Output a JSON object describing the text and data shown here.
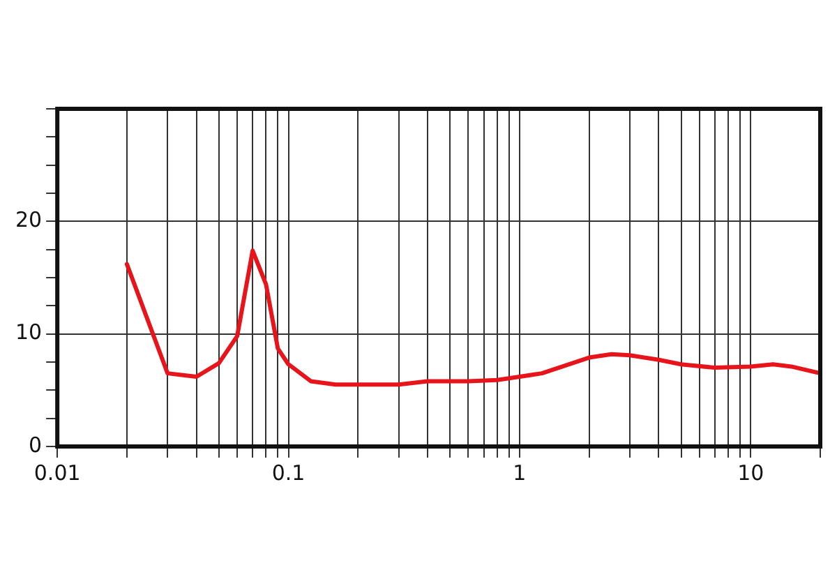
{
  "chart_data": {
    "type": "line",
    "x": [
      0.02,
      0.03,
      0.04,
      0.05,
      0.06,
      0.07,
      0.08,
      0.09,
      0.1,
      0.125,
      0.16,
      0.2,
      0.3,
      0.4,
      0.6,
      0.8,
      1,
      1.25,
      2,
      2.5,
      3,
      4,
      5,
      7,
      10,
      12.5,
      15,
      20
    ],
    "series": [
      {
        "color": "#e8141c",
        "values": [
          16.2,
          6.5,
          6.2,
          7.4,
          9.8,
          17.4,
          14.4,
          8.7,
          7.3,
          5.8,
          5.5,
          5.5,
          5.5,
          5.8,
          5.8,
          5.9,
          6.2,
          6.5,
          7.9,
          8.2,
          8.1,
          7.7,
          7.3,
          7.0,
          7.1,
          7.3,
          7.1,
          6.5
        ]
      }
    ],
    "log": "x",
    "xlim": [
      0.01,
      20
    ],
    "xticks": [
      0.01,
      {
        "value": 0.02,
        "label": null
      },
      {
        "value": 0.03,
        "label": null
      },
      {
        "value": 0.04,
        "label": null
      },
      {
        "value": 0.05,
        "label": null
      },
      {
        "value": 0.06,
        "label": null
      },
      {
        "value": 0.07,
        "label": null
      },
      {
        "value": 0.08,
        "label": null
      },
      {
        "value": 0.09,
        "label": null
      },
      0.1,
      {
        "value": 0.2,
        "label": null
      },
      {
        "value": 0.3,
        "label": null
      },
      {
        "value": 0.4,
        "label": null
      },
      {
        "value": 0.5,
        "label": null
      },
      {
        "value": 0.6,
        "label": null
      },
      {
        "value": 0.7,
        "label": null
      },
      {
        "value": 0.8,
        "label": null
      },
      {
        "value": 0.9,
        "label": null
      },
      1,
      {
        "value": 2,
        "label": null
      },
      {
        "value": 3,
        "label": null
      },
      {
        "value": 4,
        "label": null
      },
      {
        "value": 5,
        "label": null
      },
      {
        "value": 6,
        "label": null
      },
      {
        "value": 7,
        "label": null
      },
      {
        "value": 8,
        "label": null
      },
      {
        "value": 9,
        "label": null
      },
      10,
      {
        "value": 20,
        "label": null
      }
    ],
    "ylim": [
      0,
      30
    ],
    "yticks": [
      0,
      {
        "value": 2.5,
        "label": null
      },
      {
        "value": 5,
        "label": null
      },
      {
        "value": 7.5,
        "label": null
      },
      10,
      {
        "value": 12.5,
        "label": null
      },
      {
        "value": 15,
        "label": null
      },
      {
        "value": 17.5,
        "label": null
      },
      20,
      {
        "value": 22.5,
        "label": null
      },
      {
        "value": 25,
        "label": null
      },
      {
        "value": 27.5,
        "label": null
      },
      {
        "value": 30,
        "label": null
      }
    ],
    "grid": true,
    "marker": "none",
    "line_style": "solid",
    "legend": false
  }
}
